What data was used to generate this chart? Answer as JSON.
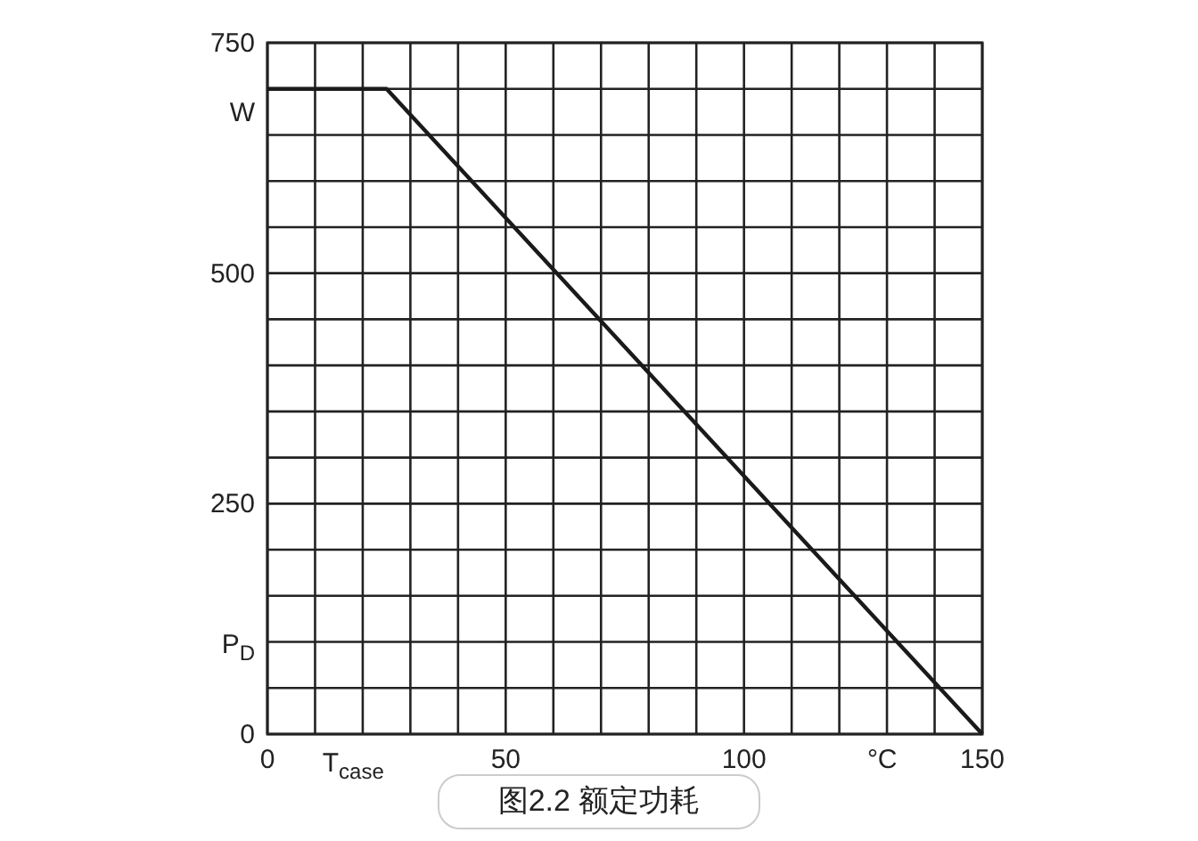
{
  "chart_data": {
    "type": "line",
    "xlabel": "T$_{case}$",
    "ylabel": "P$_{D}$",
    "annotations": [
      "W",
      "°C",
      "图2.2 额定功耗"
    ],
    "x": [
      0,
      25,
      150
    ],
    "series": [
      {
        "color": "#1a1a1a",
        "values": [
          700,
          700,
          0
        ]
      }
    ],
    "xlim": [
      0,
      150
    ],
    "ylim": [
      0,
      750
    ],
    "xticks": [
      0,
      {
        "value": 10,
        "label": null
      },
      {
        "value": 20,
        "label": null
      },
      {
        "value": 30,
        "label": null
      },
      {
        "value": 40,
        "label": null
      },
      50,
      {
        "value": 60,
        "label": null
      },
      {
        "value": 70,
        "label": null
      },
      {
        "value": 80,
        "label": null
      },
      {
        "value": 90,
        "label": null
      },
      100,
      {
        "value": 110,
        "label": null
      },
      {
        "value": 120,
        "label": null
      },
      {
        "value": 130,
        "label": null
      },
      {
        "value": 140,
        "label": null
      },
      150
    ],
    "yticks": [
      0,
      {
        "value": 50,
        "label": null
      },
      {
        "value": 100,
        "label": null
      },
      {
        "value": 150,
        "label": null
      },
      {
        "value": 200,
        "label": null
      },
      250,
      {
        "value": 300,
        "label": null
      },
      {
        "value": 350,
        "label": null
      },
      {
        "value": 400,
        "label": null
      },
      {
        "value": 450,
        "label": null
      },
      500,
      {
        "value": 550,
        "label": null
      },
      {
        "value": 600,
        "label": null
      },
      {
        "value": 650,
        "label": null
      },
      {
        "value": 700,
        "label": null
      },
      750
    ],
    "grid": true,
    "marker": "none",
    "line_style": "solid"
  }
}
